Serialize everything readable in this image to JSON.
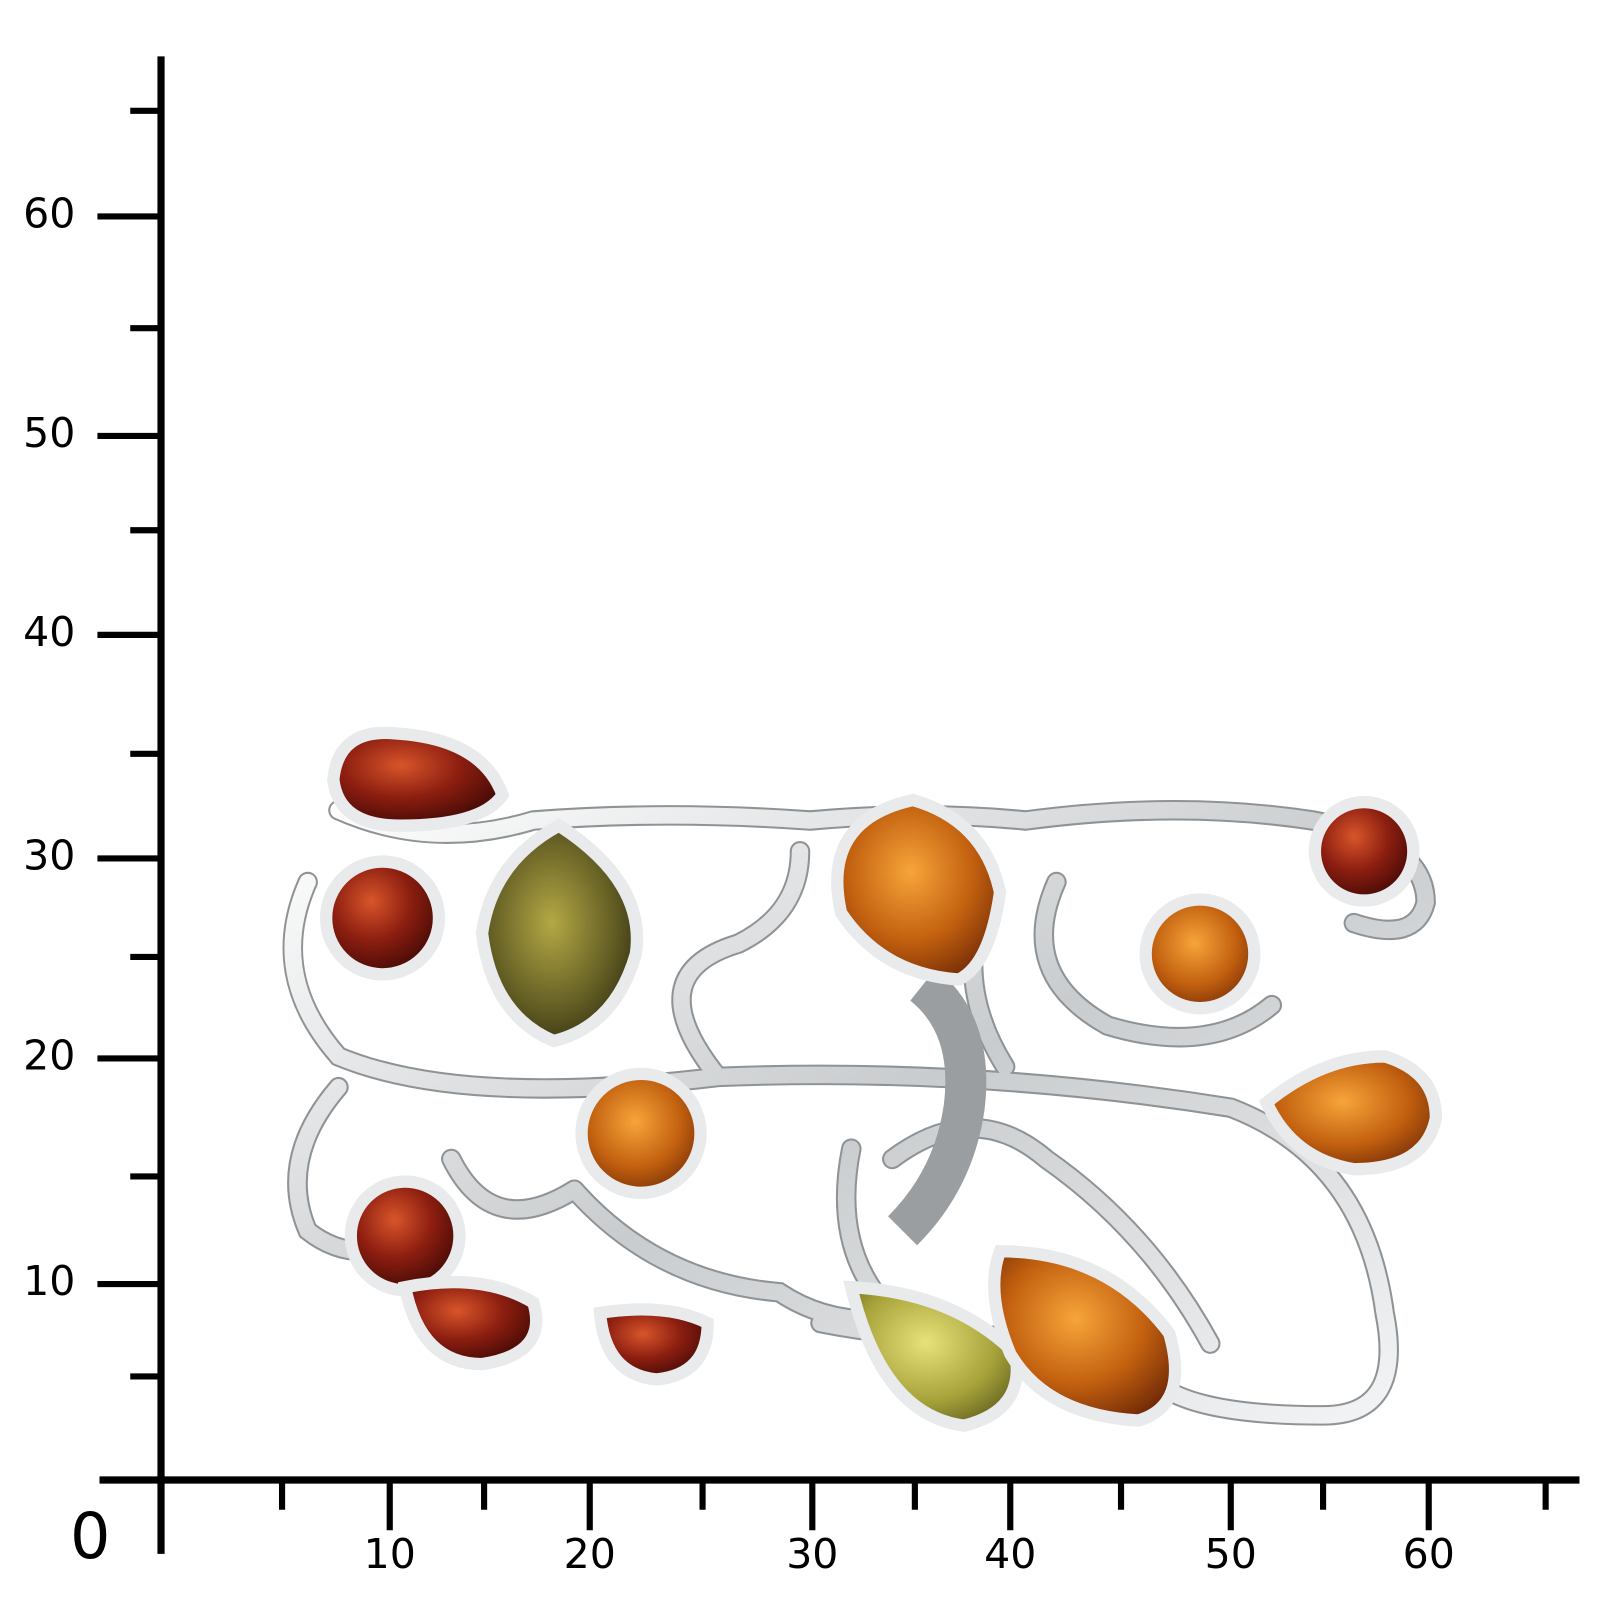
{
  "scale": {
    "origin_label": "0",
    "x_labels": [
      "10",
      "20",
      "30",
      "40",
      "50",
      "60"
    ],
    "y_labels": [
      "10",
      "20",
      "30",
      "40",
      "50",
      "60"
    ]
  }
}
